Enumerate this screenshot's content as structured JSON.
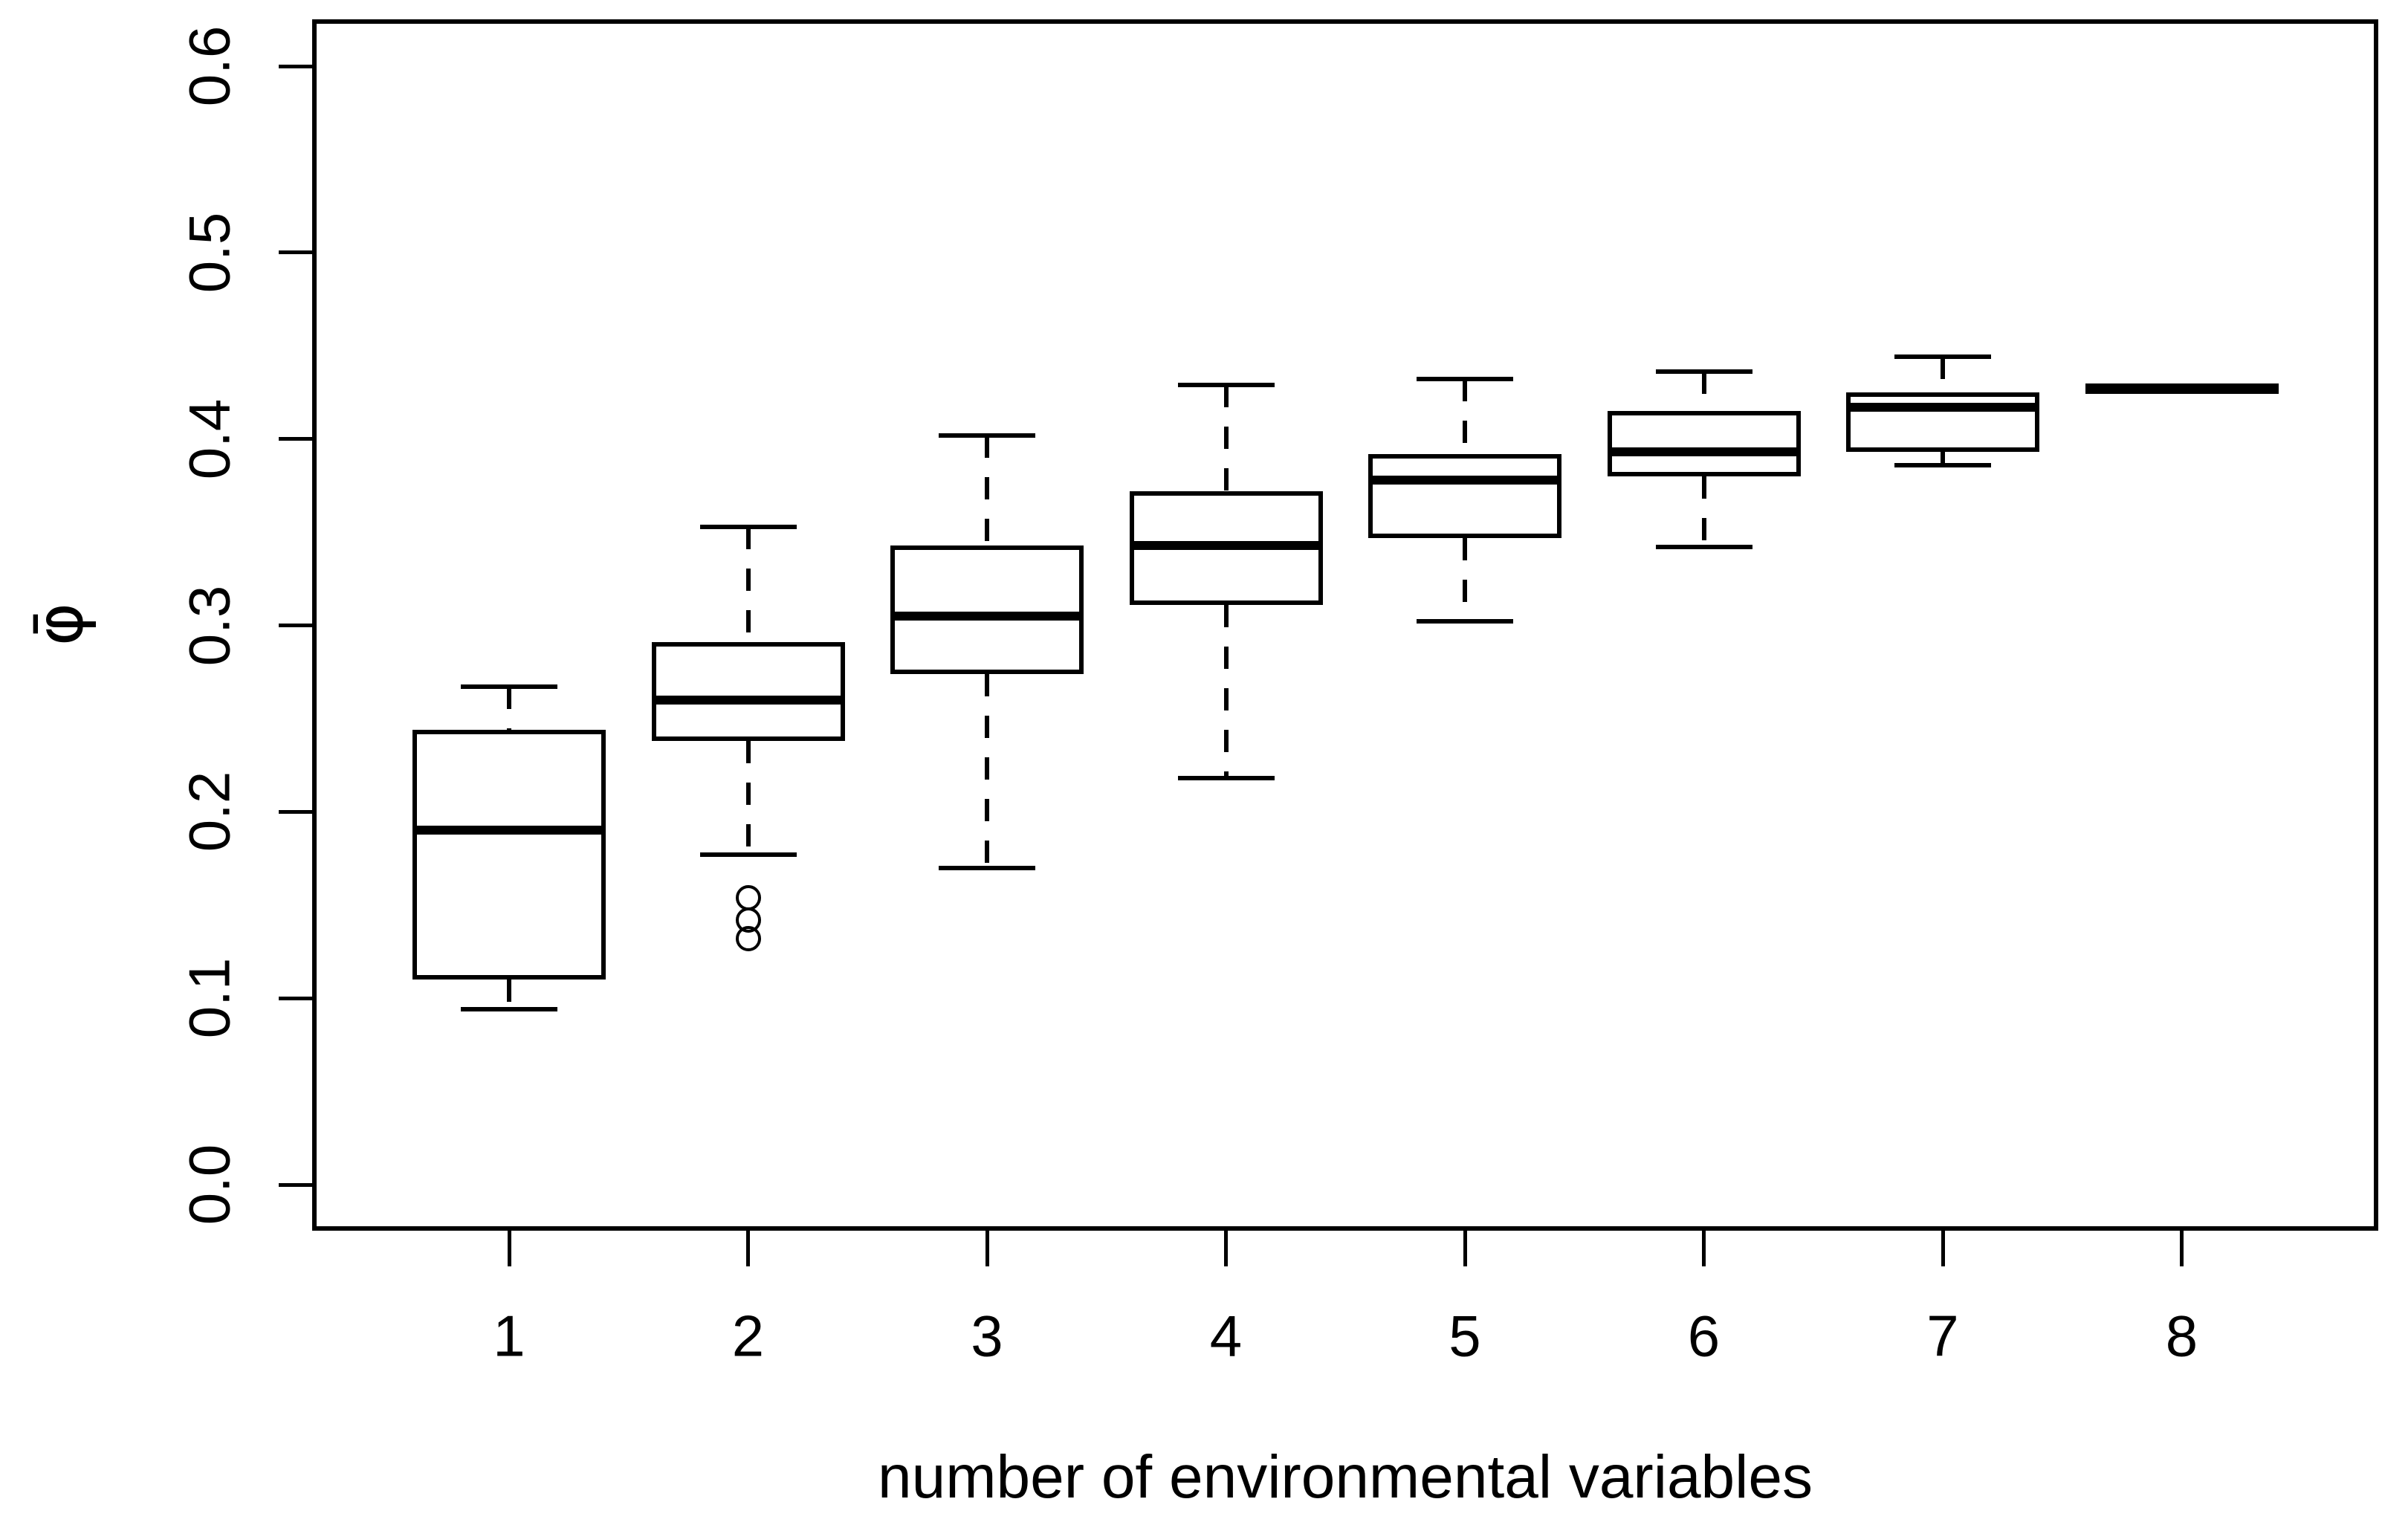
{
  "figure": {
    "background": "#ffffff",
    "line_color": "#000000"
  },
  "chart_data": {
    "type": "boxplot",
    "title": "",
    "xlabel": "number of environmental variables",
    "ylabel": "φ̄",
    "categories": [
      "1",
      "2",
      "3",
      "4",
      "5",
      "6",
      "7",
      "8"
    ],
    "y_ticks": [
      "0.0",
      "0.1",
      "0.2",
      "0.3",
      "0.4",
      "0.5",
      "0.6"
    ],
    "ylim": [
      0.0,
      0.6
    ],
    "grid": "off",
    "legend": "none",
    "whisker_style": "dashed",
    "boxes": [
      {
        "category": "1",
        "whisker_low": 0.094,
        "q1": 0.11,
        "median": 0.19,
        "q3": 0.244,
        "whisker_high": 0.267,
        "outliers": []
      },
      {
        "category": "2",
        "whisker_low": 0.177,
        "q1": 0.238,
        "median": 0.26,
        "q3": 0.291,
        "whisker_high": 0.353,
        "outliers": [
          0.154,
          0.142,
          0.132
        ]
      },
      {
        "category": "3",
        "whisker_low": 0.17,
        "q1": 0.274,
        "median": 0.305,
        "q3": 0.343,
        "whisker_high": 0.402,
        "outliers": []
      },
      {
        "category": "4",
        "whisker_low": 0.218,
        "q1": 0.311,
        "median": 0.343,
        "q3": 0.372,
        "whisker_high": 0.429,
        "outliers": []
      },
      {
        "category": "5",
        "whisker_low": 0.302,
        "q1": 0.347,
        "median": 0.378,
        "q3": 0.392,
        "whisker_high": 0.432,
        "outliers": []
      },
      {
        "category": "6",
        "whisker_low": 0.342,
        "q1": 0.38,
        "median": 0.393,
        "q3": 0.415,
        "whisker_high": 0.436,
        "outliers": []
      },
      {
        "category": "7",
        "whisker_low": 0.386,
        "q1": 0.393,
        "median": 0.417,
        "q3": 0.425,
        "whisker_high": 0.444,
        "outliers": []
      },
      {
        "category": "8",
        "whisker_low": 0.427,
        "q1": 0.427,
        "median": 0.427,
        "q3": 0.427,
        "whisker_high": 0.427,
        "outliers": []
      }
    ]
  }
}
